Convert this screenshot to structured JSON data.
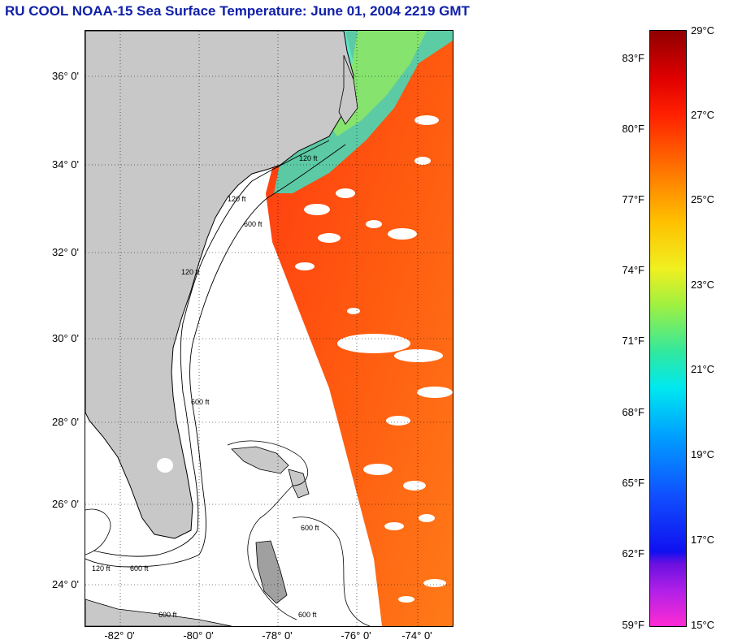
{
  "title": "RU COOL  NOAA-15  Sea Surface Temperature:  June 01, 2004 2219 GMT",
  "latitude_labels": [
    "36° 0'",
    "34° 0'",
    "32° 0'",
    "30° 0'",
    "28° 0'",
    "26° 0'",
    "24° 0'"
  ],
  "longitude_labels": [
    "-82° 0'",
    "-80° 0'",
    "-78° 0'",
    "-76° 0'",
    "-74° 0'"
  ],
  "isobath_labels": [
    "120 ft",
    "600 ft"
  ],
  "colorbar": {
    "fahrenheit_labels": [
      "83°F",
      "80°F",
      "77°F",
      "74°F",
      "71°F",
      "68°F",
      "65°F",
      "62°F",
      "59°F"
    ],
    "celsius_labels": [
      "29°C",
      "27°C",
      "25°C",
      "23°C",
      "21°C",
      "19°C",
      "17°C",
      "15°C"
    ]
  },
  "colors": {
    "title": "#1020a8",
    "land": "#c8c8c8",
    "sst_warm": "#ff5a10",
    "sst_cool": "#40e0c0"
  }
}
